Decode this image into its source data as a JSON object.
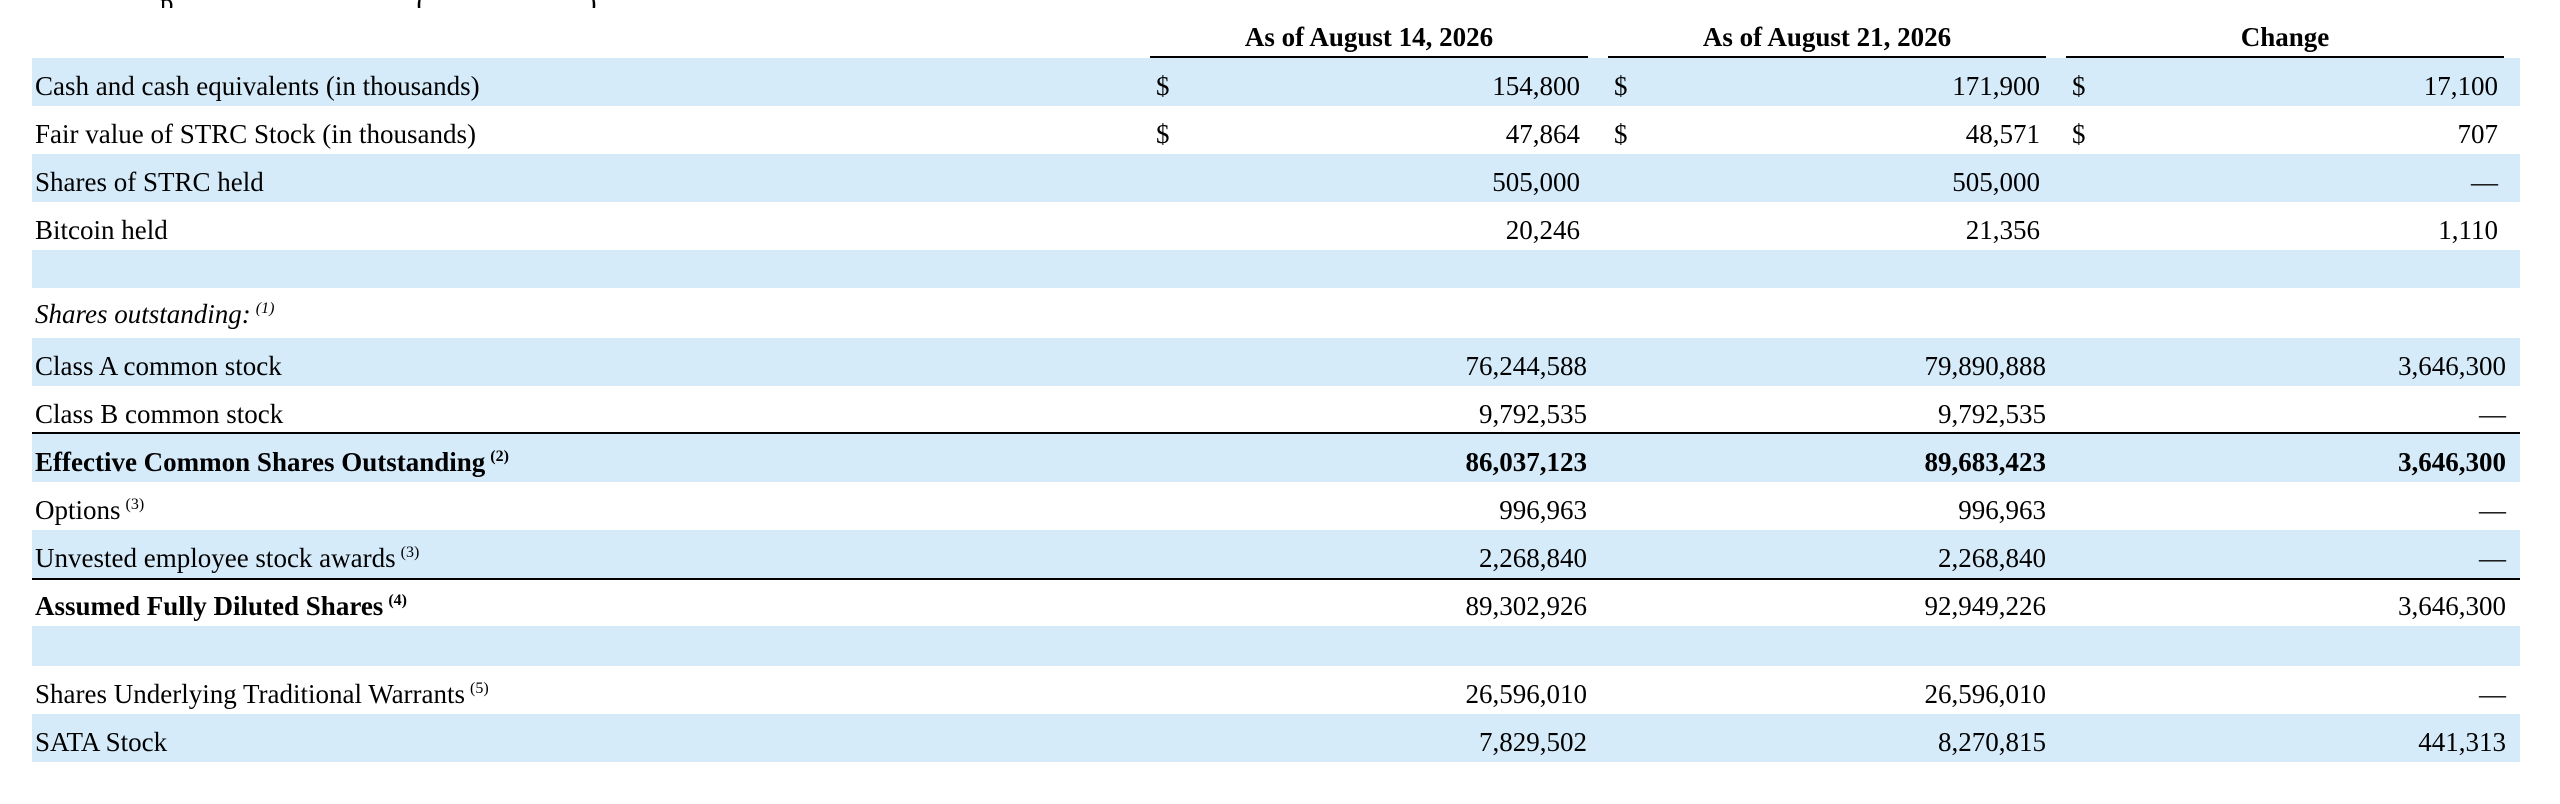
{
  "top_fragment": "p                                    (                        )",
  "columns": {
    "aug14": "As of August 14, 2026",
    "aug21": "As of August 21, 2026",
    "change": "Change"
  },
  "rows": {
    "cash": {
      "label": "Cash and cash equivalents (in thousands)",
      "cur": "$",
      "aug14": "154,800",
      "aug21": "171,900",
      "change": "17,100"
    },
    "strc_fair_value": {
      "label": "Fair value of STRC Stock (in thousands)",
      "cur": "$",
      "aug14": "47,864",
      "aug21": "48,571",
      "change": "707"
    },
    "strc_shares": {
      "label": "Shares of STRC held",
      "aug14": "505,000",
      "aug21": "505,000",
      "change": "—"
    },
    "bitcoin": {
      "label": "Bitcoin held",
      "aug14": "20,246",
      "aug21": "21,356",
      "change": "1,110"
    },
    "shares_outstanding_heading": {
      "label": "Shares outstanding:",
      "note": "(1)"
    },
    "class_a": {
      "label": "Class A common stock",
      "aug14": "76,244,588",
      "aug21": "79,890,888",
      "change": "3,646,300"
    },
    "class_b": {
      "label": "Class B common stock",
      "aug14": "9,792,535",
      "aug21": "9,792,535",
      "change": "—"
    },
    "effective": {
      "label": "Effective Common Shares Outstanding",
      "note": "(2)",
      "aug14": "86,037,123",
      "aug21": "89,683,423",
      "change": "3,646,300"
    },
    "options": {
      "label": "Options",
      "note": "(3)",
      "aug14": "996,963",
      "aug21": "996,963",
      "change": "—"
    },
    "unvested": {
      "label": "Unvested employee stock awards",
      "note": "(3)",
      "aug14": "2,268,840",
      "aug21": "2,268,840",
      "change": "—"
    },
    "fully_diluted": {
      "label": "Assumed Fully Diluted Shares",
      "note": "(4)",
      "aug14": "89,302,926",
      "aug21": "92,949,226",
      "change": "3,646,300"
    },
    "warrants": {
      "label": "Shares Underlying Traditional Warrants",
      "note": "(5)",
      "aug14": "26,596,010",
      "aug21": "26,596,010",
      "change": "—"
    },
    "sata": {
      "label": "SATA Stock",
      "aug14": "7,829,502",
      "aug21": "8,270,815",
      "change": "441,313"
    }
  },
  "colors": {
    "band": "#d6ebfa",
    "rule": "#000000"
  }
}
